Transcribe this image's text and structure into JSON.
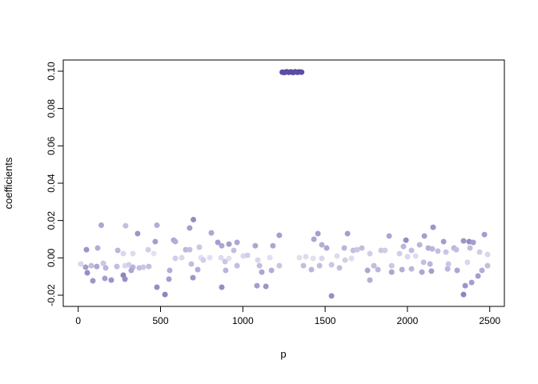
{
  "figure": {
    "background": "#ffffff",
    "axis_color": "#000000"
  },
  "chart_data": {
    "type": "scatter",
    "title": "",
    "xlabel": "p",
    "ylabel": "coefficients",
    "xlim": [
      -91,
      2589
    ],
    "ylim": [
      -0.026,
      0.106
    ],
    "grid": false,
    "legend": "none",
    "point_shape": "filled-circle",
    "point_radius": 3.5,
    "color_scale": {
      "low": "#f0effa",
      "high": "#5b4aa2"
    },
    "x_axis": {
      "ticks": [
        0,
        500,
        1000,
        1500,
        2000,
        2500
      ],
      "labels": [
        "0",
        "500",
        "1000",
        "1500",
        "2000",
        "2500"
      ]
    },
    "y_axis": {
      "ticks": [
        -0.02,
        0,
        0.02,
        0.04,
        0.06,
        0.08,
        0.1
      ],
      "labels": [
        "-0.02",
        "0.00",
        "0.02",
        "0.04",
        "0.06",
        "0.08",
        "0.10"
      ]
    },
    "annotations": [
      "tight cluster of ~10 dark purple points near p = 1240-1360 at coefficient = 0.0995",
      "remaining points scattered around coefficient 0 between about -0.021 and 0.021",
      "point shade varies from near-white lavender to medium purple"
    ],
    "points": [
      [
        140,
        0.0175,
        0.45
      ],
      [
        288,
        0.0172,
        0.3
      ],
      [
        478,
        0.0175,
        0.4
      ],
      [
        361,
        0.013,
        0.55
      ],
      [
        468,
        0.0087,
        0.5
      ],
      [
        50,
        0.0044,
        0.55
      ],
      [
        118,
        0.0053,
        0.4
      ],
      [
        240,
        0.004,
        0.35
      ],
      [
        274,
        0.0023,
        0.15
      ],
      [
        332,
        0.0023,
        0.12
      ],
      [
        425,
        0.0044,
        0.2
      ],
      [
        459,
        0.0023,
        0.08
      ],
      [
        16,
        -0.0033,
        0.15
      ],
      [
        45,
        -0.005,
        0.5
      ],
      [
        79,
        -0.0042,
        0.3
      ],
      [
        113,
        -0.0046,
        0.45
      ],
      [
        152,
        -0.0029,
        0.25
      ],
      [
        167,
        -0.0054,
        0.35
      ],
      [
        235,
        -0.0046,
        0.3
      ],
      [
        284,
        -0.0042,
        0.15
      ],
      [
        308,
        -0.0037,
        0.2
      ],
      [
        332,
        -0.005,
        0.35
      ],
      [
        371,
        -0.0054,
        0.3
      ],
      [
        395,
        -0.005,
        0.25
      ],
      [
        429,
        -0.0046,
        0.3
      ],
      [
        55,
        -0.008,
        0.6
      ],
      [
        89,
        -0.0123,
        0.55
      ],
      [
        162,
        -0.011,
        0.5
      ],
      [
        201,
        -0.0119,
        0.55
      ],
      [
        274,
        -0.0093,
        0.65
      ],
      [
        284,
        -0.0114,
        0.6
      ],
      [
        322,
        -0.0067,
        0.45
      ],
      [
        478,
        -0.0157,
        0.6
      ],
      [
        527,
        -0.0196,
        0.65
      ],
      [
        551,
        -0.0114,
        0.5
      ],
      [
        556,
        -0.0067,
        0.4
      ],
      [
        580,
        0.0095,
        0.45
      ],
      [
        700,
        0.0205,
        0.6
      ],
      [
        677,
        0.016,
        0.5
      ],
      [
        809,
        0.0134,
        0.45
      ],
      [
        590,
        0.0087,
        0.4
      ],
      [
        653,
        0.0044,
        0.35
      ],
      [
        677,
        0.0044,
        0.3
      ],
      [
        736,
        0.0057,
        0.25
      ],
      [
        848,
        0.0083,
        0.5
      ],
      [
        872,
        0.0065,
        0.45
      ],
      [
        916,
        0.0074,
        0.5
      ],
      [
        965,
        0.0083,
        0.45
      ],
      [
        945,
        0.004,
        0.3
      ],
      [
        1076,
        0.0065,
        0.45
      ],
      [
        1183,
        0.0065,
        0.45
      ],
      [
        1222,
        0.0121,
        0.5
      ],
      [
        590,
        -0.0003,
        0.2
      ],
      [
        629,
        0.0001,
        0.15
      ],
      [
        687,
        -0.0033,
        0.3
      ],
      [
        746,
        0.0001,
        0.1
      ],
      [
        760,
        -0.0012,
        0.2
      ],
      [
        799,
        0.0001,
        0.1
      ],
      [
        867,
        0.0001,
        0.12
      ],
      [
        892,
        -0.002,
        0.25
      ],
      [
        916,
        -0.0003,
        0.1
      ],
      [
        965,
        -0.0042,
        0.3
      ],
      [
        1003,
        0.001,
        0.15
      ],
      [
        1028,
        0.0014,
        0.2
      ],
      [
        1091,
        -0.0012,
        0.15
      ],
      [
        1101,
        -0.0042,
        0.3
      ],
      [
        1164,
        0.0001,
        0.1
      ],
      [
        1222,
        -0.0042,
        0.25
      ],
      [
        726,
        -0.0063,
        0.4
      ],
      [
        896,
        -0.0067,
        0.35
      ],
      [
        697,
        -0.0106,
        0.55
      ],
      [
        1115,
        -0.0076,
        0.45
      ],
      [
        1174,
        -0.0067,
        0.4
      ],
      [
        872,
        -0.0157,
        0.6
      ],
      [
        1086,
        -0.0149,
        0.5
      ],
      [
        1140,
        -0.0153,
        0.55
      ],
      [
        1456,
        0.013,
        0.5
      ],
      [
        1432,
        0.01,
        0.45
      ],
      [
        1636,
        0.013,
        0.5
      ],
      [
        1889,
        0.0117,
        0.45
      ],
      [
        1480,
        0.007,
        0.4
      ],
      [
        1509,
        0.0053,
        0.45
      ],
      [
        1616,
        0.0053,
        0.35
      ],
      [
        1670,
        0.004,
        0.3
      ],
      [
        1694,
        0.0044,
        0.25
      ],
      [
        1723,
        0.0053,
        0.3
      ],
      [
        1772,
        0.0023,
        0.2
      ],
      [
        1840,
        0.004,
        0.25
      ],
      [
        1864,
        0.004,
        0.2
      ],
      [
        1344,
        0.0001,
        0.1
      ],
      [
        1383,
        0.0006,
        0.12
      ],
      [
        1427,
        -0.0003,
        0.1
      ],
      [
        1480,
        -0.0003,
        0.15
      ],
      [
        1572,
        0.001,
        0.12
      ],
      [
        1621,
        -0.0012,
        0.2
      ],
      [
        1660,
        -0.0003,
        0.12
      ],
      [
        1368,
        -0.0042,
        0.3
      ],
      [
        1417,
        -0.0063,
        0.35
      ],
      [
        1466,
        -0.0042,
        0.3
      ],
      [
        1539,
        -0.0037,
        0.25
      ],
      [
        1587,
        -0.0054,
        0.3
      ],
      [
        1758,
        -0.0067,
        0.45
      ],
      [
        1796,
        -0.0042,
        0.3
      ],
      [
        1821,
        -0.0063,
        0.35
      ],
      [
        1904,
        -0.0042,
        0.25
      ],
      [
        1904,
        -0.0076,
        0.45
      ],
      [
        1772,
        -0.0119,
        0.4
      ],
      [
        1539,
        -0.0204,
        0.6
      ],
      [
        2156,
        0.0164,
        0.55
      ],
      [
        2468,
        0.0125,
        0.5
      ],
      [
        1991,
        0.0095,
        0.6
      ],
      [
        2103,
        0.0117,
        0.5
      ],
      [
        2220,
        0.0087,
        0.5
      ],
      [
        2341,
        0.0091,
        0.55
      ],
      [
        2375,
        0.0087,
        0.6
      ],
      [
        2400,
        0.0083,
        0.5
      ],
      [
        1976,
        0.0061,
        0.35
      ],
      [
        2025,
        0.004,
        0.3
      ],
      [
        2074,
        0.007,
        0.35
      ],
      [
        2127,
        0.0053,
        0.4
      ],
      [
        2151,
        0.0048,
        0.35
      ],
      [
        2185,
        0.0036,
        0.3
      ],
      [
        2234,
        0.0031,
        0.25
      ],
      [
        2283,
        0.0053,
        0.35
      ],
      [
        2297,
        0.0044,
        0.3
      ],
      [
        2380,
        0.0053,
        0.3
      ],
      [
        2438,
        0.0031,
        0.2
      ],
      [
        2487,
        0.0018,
        0.15
      ],
      [
        1952,
        0.0023,
        0.2
      ],
      [
        2001,
        0.0006,
        0.15
      ],
      [
        2050,
        0.001,
        0.12
      ],
      [
        2098,
        -0.0024,
        0.3
      ],
      [
        2137,
        -0.0033,
        0.35
      ],
      [
        1967,
        -0.0063,
        0.4
      ],
      [
        2025,
        -0.0059,
        0.35
      ],
      [
        2088,
        -0.0076,
        0.45
      ],
      [
        2146,
        -0.0071,
        0.5
      ],
      [
        2244,
        -0.0059,
        0.35
      ],
      [
        2249,
        -0.0033,
        0.25
      ],
      [
        2302,
        -0.0067,
        0.45
      ],
      [
        2365,
        -0.0024,
        0.15
      ],
      [
        2487,
        -0.0042,
        0.3
      ],
      [
        2429,
        -0.0097,
        0.5
      ],
      [
        2453,
        -0.0067,
        0.4
      ],
      [
        2351,
        -0.0149,
        0.55
      ],
      [
        2390,
        -0.0132,
        0.5
      ],
      [
        2341,
        -0.0196,
        0.65
      ],
      [
        1240,
        0.0995,
        1
      ],
      [
        1253,
        0.0993,
        0.98
      ],
      [
        1266,
        0.0997,
        1
      ],
      [
        1279,
        0.0994,
        0.97
      ],
      [
        1292,
        0.0996,
        1
      ],
      [
        1305,
        0.0993,
        0.98
      ],
      [
        1318,
        0.0997,
        1
      ],
      [
        1331,
        0.0994,
        0.97
      ],
      [
        1344,
        0.0996,
        1
      ],
      [
        1357,
        0.0995,
        0.98
      ]
    ]
  }
}
